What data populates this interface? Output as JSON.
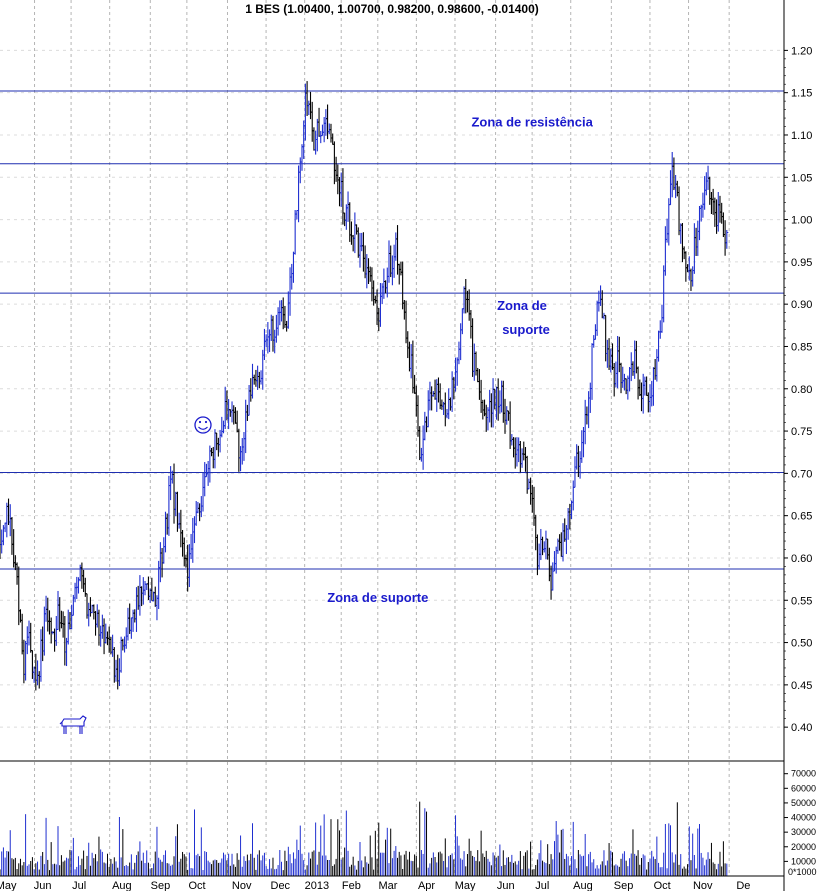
{
  "chart_data": {
    "type": "candlestick",
    "title": "1 BES (1.00400, 1.00700, 0.98200, 0.98600, -0.01400)",
    "price_axis": {
      "ylim": [
        0.36,
        1.23
      ],
      "ticks": [
        "0.40",
        "0.45",
        "0.50",
        "0.55",
        "0.60",
        "0.65",
        "0.70",
        "0.75",
        "0.80",
        "0.85",
        "0.90",
        "0.95",
        "1.00",
        "1.05",
        "1.10",
        "1.15",
        "1.20"
      ]
    },
    "volume_axis": {
      "ylim": [
        0,
        78000
      ],
      "ticks": [
        "70000",
        "60000",
        "50000",
        "40000",
        "30000",
        "20000",
        "10000"
      ],
      "bottom_tick": "0*1000"
    },
    "x_axis": {
      "range": [
        0,
        19.3
      ],
      "labels": [
        {
          "label": "May",
          "pos": 0.15
        },
        {
          "label": "Jun",
          "pos": 1.05
        },
        {
          "label": "Jul",
          "pos": 1.95
        },
        {
          "label": "Aug",
          "pos": 3.0
        },
        {
          "label": "Sep",
          "pos": 3.95
        },
        {
          "label": "Oct",
          "pos": 4.85
        },
        {
          "label": "Nov",
          "pos": 5.95
        },
        {
          "label": "Dec",
          "pos": 6.9
        },
        {
          "label": "2013",
          "pos": 7.8
        },
        {
          "label": "Feb",
          "pos": 8.65
        },
        {
          "label": "Mar",
          "pos": 9.55
        },
        {
          "label": "Apr",
          "pos": 10.5
        },
        {
          "label": "May",
          "pos": 11.45
        },
        {
          "label": "Jun",
          "pos": 12.45
        },
        {
          "label": "Jul",
          "pos": 13.35
        },
        {
          "label": "Aug",
          "pos": 14.35
        },
        {
          "label": "Sep",
          "pos": 15.35
        },
        {
          "label": "Oct",
          "pos": 16.3
        },
        {
          "label": "Nov",
          "pos": 17.3
        },
        {
          "label": "De",
          "pos": 18.3
        }
      ],
      "grid_positions": [
        0.85,
        1.75,
        2.7,
        3.7,
        4.6,
        5.6,
        6.55,
        7.5,
        8.4,
        9.3,
        10.25,
        11.2,
        12.2,
        13.1,
        14.05,
        15.05,
        16.0,
        16.95,
        17.95
      ]
    },
    "horizontal_lines": [
      1.152,
      1.066,
      0.913,
      0.701,
      0.587
    ],
    "annotations": [
      {
        "text": "Zona de resistência",
        "x": 13.1,
        "y": 1.11
      },
      {
        "text": "Zona de",
        "x": 12.85,
        "y": 0.893
      },
      {
        "text": "suporte",
        "x": 12.95,
        "y": 0.865
      },
      {
        "text": "Zona de suporte",
        "x": 9.3,
        "y": 0.548
      }
    ],
    "price_path": [
      [
        0.0,
        0.63
      ],
      [
        0.15,
        0.65
      ],
      [
        0.3,
        0.62
      ],
      [
        0.4,
        0.58
      ],
      [
        0.5,
        0.53
      ],
      [
        0.6,
        0.47
      ],
      [
        0.7,
        0.52
      ],
      [
        0.8,
        0.48
      ],
      [
        0.9,
        0.44
      ],
      [
        1.0,
        0.49
      ],
      [
        1.15,
        0.54
      ],
      [
        1.3,
        0.51
      ],
      [
        1.45,
        0.53
      ],
      [
        1.6,
        0.5
      ],
      [
        1.8,
        0.54
      ],
      [
        1.95,
        0.58
      ],
      [
        2.05,
        0.56
      ],
      [
        2.2,
        0.54
      ],
      [
        2.4,
        0.53
      ],
      [
        2.6,
        0.5
      ],
      [
        2.75,
        0.48
      ],
      [
        2.9,
        0.47
      ],
      [
        3.0,
        0.5
      ],
      [
        3.15,
        0.52
      ],
      [
        3.3,
        0.53
      ],
      [
        3.45,
        0.55
      ],
      [
        3.6,
        0.58
      ],
      [
        3.75,
        0.55
      ],
      [
        3.9,
        0.57
      ],
      [
        4.0,
        0.61
      ],
      [
        4.1,
        0.64
      ],
      [
        4.2,
        0.7
      ],
      [
        4.3,
        0.67
      ],
      [
        4.4,
        0.64
      ],
      [
        4.5,
        0.6
      ],
      [
        4.6,
        0.58
      ],
      [
        4.75,
        0.62
      ],
      [
        4.9,
        0.66
      ],
      [
        5.0,
        0.68
      ],
      [
        5.15,
        0.71
      ],
      [
        5.3,
        0.74
      ],
      [
        5.45,
        0.76
      ],
      [
        5.6,
        0.78
      ],
      [
        5.75,
        0.76
      ],
      [
        5.9,
        0.73
      ],
      [
        6.05,
        0.77
      ],
      [
        6.2,
        0.8
      ],
      [
        6.4,
        0.82
      ],
      [
        6.55,
        0.85
      ],
      [
        6.7,
        0.87
      ],
      [
        6.85,
        0.89
      ],
      [
        6.95,
        0.9
      ],
      [
        7.05,
        0.88
      ],
      [
        7.15,
        0.93
      ],
      [
        7.25,
        0.98
      ],
      [
        7.35,
        1.04
      ],
      [
        7.45,
        1.1
      ],
      [
        7.55,
        1.15
      ],
      [
        7.65,
        1.13
      ],
      [
        7.75,
        1.09
      ],
      [
        7.85,
        1.11
      ],
      [
        7.95,
        1.12
      ],
      [
        8.05,
        1.1
      ],
      [
        8.15,
        1.08
      ],
      [
        8.3,
        1.05
      ],
      [
        8.45,
        1.02
      ],
      [
        8.6,
        1.0
      ],
      [
        8.75,
        0.98
      ],
      [
        8.9,
        0.97
      ],
      [
        9.05,
        0.94
      ],
      [
        9.15,
        0.91
      ],
      [
        9.3,
        0.88
      ],
      [
        9.45,
        0.92
      ],
      [
        9.6,
        0.95
      ],
      [
        9.75,
        0.97
      ],
      [
        9.85,
        0.94
      ],
      [
        9.95,
        0.9
      ],
      [
        10.05,
        0.85
      ],
      [
        10.2,
        0.8
      ],
      [
        10.3,
        0.74
      ],
      [
        10.4,
        0.72
      ],
      [
        10.5,
        0.77
      ],
      [
        10.6,
        0.79
      ],
      [
        10.75,
        0.81
      ],
      [
        10.9,
        0.78
      ],
      [
        11.0,
        0.76
      ],
      [
        11.1,
        0.79
      ],
      [
        11.2,
        0.83
      ],
      [
        11.3,
        0.86
      ],
      [
        11.4,
        0.9
      ],
      [
        11.45,
        0.93
      ],
      [
        11.55,
        0.88
      ],
      [
        11.65,
        0.83
      ],
      [
        11.8,
        0.8
      ],
      [
        11.95,
        0.78
      ],
      [
        12.05,
        0.77
      ],
      [
        12.2,
        0.8
      ],
      [
        12.35,
        0.79
      ],
      [
        12.5,
        0.76
      ],
      [
        12.65,
        0.74
      ],
      [
        12.8,
        0.72
      ],
      [
        12.9,
        0.71
      ],
      [
        13.05,
        0.68
      ],
      [
        13.15,
        0.63
      ],
      [
        13.25,
        0.6
      ],
      [
        13.35,
        0.61
      ],
      [
        13.45,
        0.62
      ],
      [
        13.55,
        0.56
      ],
      [
        13.65,
        0.59
      ],
      [
        13.75,
        0.61
      ],
      [
        13.85,
        0.62
      ],
      [
        14.0,
        0.65
      ],
      [
        14.1,
        0.68
      ],
      [
        14.2,
        0.71
      ],
      [
        14.3,
        0.72
      ],
      [
        14.4,
        0.75
      ],
      [
        14.5,
        0.8
      ],
      [
        14.6,
        0.85
      ],
      [
        14.7,
        0.89
      ],
      [
        14.8,
        0.9
      ],
      [
        14.9,
        0.86
      ],
      [
        15.0,
        0.84
      ],
      [
        15.1,
        0.82
      ],
      [
        15.2,
        0.83
      ],
      [
        15.35,
        0.81
      ],
      [
        15.5,
        0.82
      ],
      [
        15.6,
        0.84
      ],
      [
        15.75,
        0.8
      ],
      [
        15.9,
        0.81
      ],
      [
        16.0,
        0.79
      ],
      [
        16.1,
        0.82
      ],
      [
        16.2,
        0.85
      ],
      [
        16.3,
        0.9
      ],
      [
        16.4,
        0.98
      ],
      [
        16.5,
        1.06
      ],
      [
        16.6,
        1.04
      ],
      [
        16.7,
        1.01
      ],
      [
        16.8,
        0.97
      ],
      [
        16.9,
        0.93
      ],
      [
        17.0,
        0.94
      ],
      [
        17.1,
        0.97
      ],
      [
        17.2,
        0.99
      ],
      [
        17.3,
        1.02
      ],
      [
        17.4,
        1.04
      ],
      [
        17.5,
        1.03
      ],
      [
        17.6,
        1.01
      ],
      [
        17.7,
        1.0
      ],
      [
        17.8,
        0.99
      ],
      [
        17.9,
        0.986
      ]
    ]
  }
}
